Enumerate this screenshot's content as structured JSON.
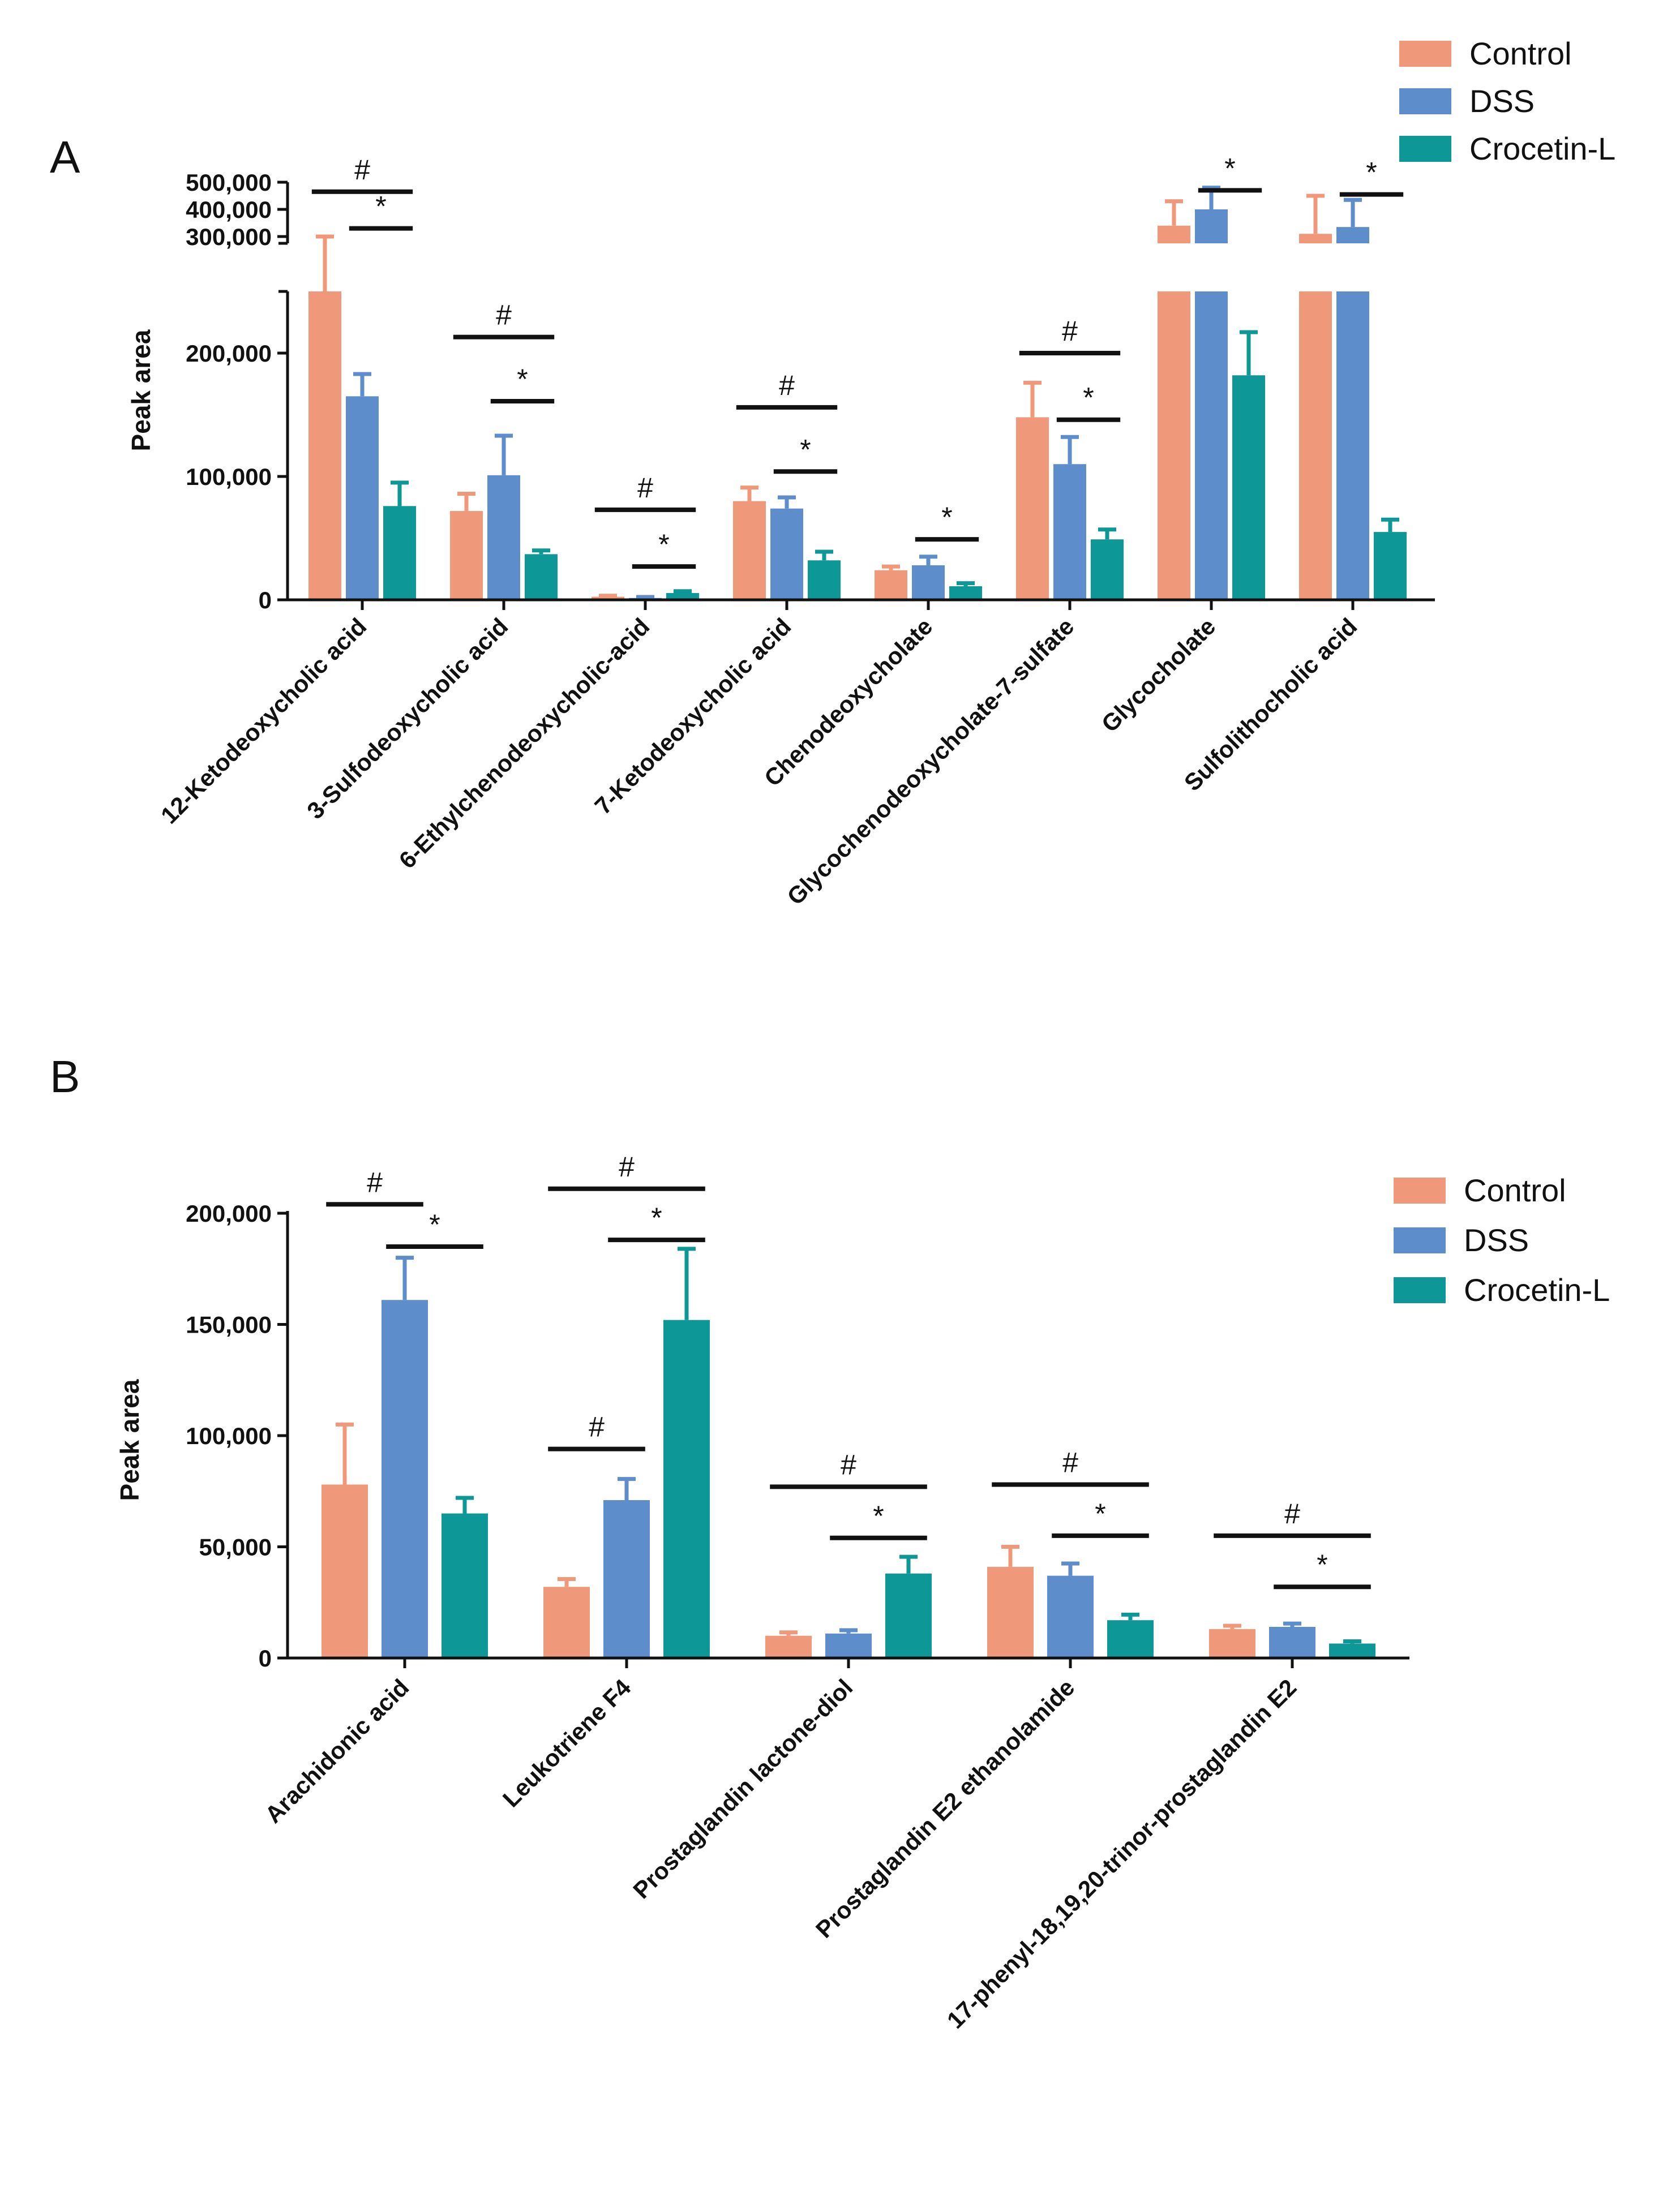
{
  "colors": {
    "Control": "#F0997A",
    "DSS": "#5E8DCB",
    "Crocetin-L": "#0E9797",
    "axis": "#111111"
  },
  "chart_data": [
    {
      "type": "bar",
      "panel": "A",
      "ylabel": "Peak area",
      "axis_break": true,
      "lower_range": [
        0,
        250000
      ],
      "upper_range": [
        275000,
        500000
      ],
      "lower_ticks": [
        "0",
        "100,000",
        "200,000"
      ],
      "lower_tick_values": [
        0,
        100000,
        200000
      ],
      "upper_ticks": [
        "300,000",
        "400,000",
        "500,000"
      ],
      "upper_tick_values": [
        300000,
        400000,
        500000
      ],
      "legend": [
        "Control",
        "DSS",
        "Crocetin-L"
      ],
      "legend_position": "top-right",
      "categories": [
        "12-Ketodeoxycholic acid",
        "3-Sulfodeoxycholic acid",
        "6-Ethylchenodeoxycholic-acid",
        "7-Ketodeoxycholic acid",
        "Chenodeoxycholate",
        "Glycochenodeoxycholate-7-sulfate",
        "Glycocholate",
        "Sulfolithocholic acid"
      ],
      "series": [
        {
          "name": "Control",
          "values": [
            250000,
            72000,
            2500,
            80000,
            24000,
            148000,
            340000,
            310000
          ],
          "errors": [
            50000,
            14000,
            800,
            11000,
            3000,
            28000,
            90000,
            140000
          ]
        },
        {
          "name": "DSS",
          "values": [
            165000,
            101000,
            1500,
            74000,
            28000,
            110000,
            400000,
            335000
          ],
          "errors": [
            18000,
            32000,
            800,
            9000,
            7000,
            22000,
            80000,
            100000
          ]
        },
        {
          "name": "Crocetin-L",
          "values": [
            76000,
            37000,
            5500,
            32000,
            11000,
            49000,
            182000,
            55000
          ],
          "errors": [
            19000,
            3000,
            1500,
            7000,
            2500,
            8000,
            35000,
            10000
          ]
        }
      ],
      "significance": [
        {
          "category": 0,
          "from": "Control",
          "to": "Crocetin-L",
          "mark": "#",
          "level": 465000
        },
        {
          "category": 0,
          "from": "DSS",
          "to": "Crocetin-L",
          "mark": "*",
          "level": 330000
        },
        {
          "category": 1,
          "from": "Control",
          "to": "Crocetin-L",
          "mark": "#",
          "level": 213000
        },
        {
          "category": 1,
          "from": "DSS",
          "to": "Crocetin-L",
          "mark": "*",
          "level": 161000
        },
        {
          "category": 2,
          "from": "Control",
          "to": "Crocetin-L",
          "mark": "#",
          "level": 73000
        },
        {
          "category": 2,
          "from": "DSS",
          "to": "Crocetin-L",
          "mark": "*",
          "level": 27000
        },
        {
          "category": 3,
          "from": "Control",
          "to": "Crocetin-L",
          "mark": "#",
          "level": 156000
        },
        {
          "category": 3,
          "from": "DSS",
          "to": "Crocetin-L",
          "mark": "*",
          "level": 104000
        },
        {
          "category": 4,
          "from": "DSS",
          "to": "Crocetin-L",
          "mark": "*",
          "level": 49000
        },
        {
          "category": 5,
          "from": "Control",
          "to": "Crocetin-L",
          "mark": "#",
          "level": 200000
        },
        {
          "category": 5,
          "from": "DSS",
          "to": "Crocetin-L",
          "mark": "*",
          "level": 146000
        },
        {
          "category": 6,
          "from": "DSS",
          "to": "Crocetin-L",
          "mark": "*",
          "level": 470000
        },
        {
          "category": 7,
          "from": "DSS",
          "to": "Crocetin-L",
          "mark": "*",
          "level": 455000
        }
      ]
    },
    {
      "type": "bar",
      "panel": "B",
      "ylabel": "Peak area",
      "ylim": [
        0,
        200000
      ],
      "ticks": [
        "0",
        "50,000",
        "100,000",
        "150,000",
        "200,000"
      ],
      "tick_values": [
        0,
        50000,
        100000,
        150000,
        200000
      ],
      "legend": [
        "Control",
        "DSS",
        "Crocetin-L"
      ],
      "legend_position": "top-right",
      "categories": [
        "Arachidonic acid",
        "Leukotriene F4",
        "Prostaglandin lactone-diol",
        "Prostaglandin E2 ethanolamide",
        "17-phenyl-18,19,20-trinor-prostaglandin E2"
      ],
      "series": [
        {
          "name": "Control",
          "values": [
            78000,
            32000,
            10000,
            41000,
            13000
          ],
          "errors": [
            27000,
            3500,
            1500,
            9000,
            1500
          ]
        },
        {
          "name": "DSS",
          "values": [
            161000,
            71000,
            11000,
            37000,
            14000
          ],
          "errors": [
            19000,
            9500,
            1500,
            5500,
            1500
          ]
        },
        {
          "name": "Crocetin-L",
          "values": [
            65000,
            152000,
            38000,
            17000,
            6500
          ],
          "errors": [
            7000,
            32000,
            7500,
            2500,
            1000
          ]
        }
      ],
      "significance": [
        {
          "category": 0,
          "from": "Control",
          "to": "DSS",
          "mark": "#",
          "level": 204000
        },
        {
          "category": 0,
          "from": "DSS",
          "to": "Crocetin-L",
          "mark": "*",
          "level": 185000
        },
        {
          "category": 1,
          "from": "Control",
          "to": "Crocetin-L",
          "mark": "#",
          "level": 211000
        },
        {
          "category": 1,
          "from": "DSS",
          "to": "Crocetin-L",
          "mark": "*",
          "level": 188000
        },
        {
          "category": 1,
          "from": "Control",
          "to": "DSS",
          "mark": "#",
          "level": 94000
        },
        {
          "category": 2,
          "from": "Control",
          "to": "Crocetin-L",
          "mark": "#",
          "level": 77000
        },
        {
          "category": 2,
          "from": "DSS",
          "to": "Crocetin-L",
          "mark": "*",
          "level": 54000
        },
        {
          "category": 3,
          "from": "Control",
          "to": "Crocetin-L",
          "mark": "#",
          "level": 78000
        },
        {
          "category": 3,
          "from": "DSS",
          "to": "Crocetin-L",
          "mark": "*",
          "level": 55000
        },
        {
          "category": 4,
          "from": "Control",
          "to": "Crocetin-L",
          "mark": "#",
          "level": 55000
        },
        {
          "category": 4,
          "from": "DSS",
          "to": "Crocetin-L",
          "mark": "*",
          "level": 32000
        }
      ]
    }
  ]
}
